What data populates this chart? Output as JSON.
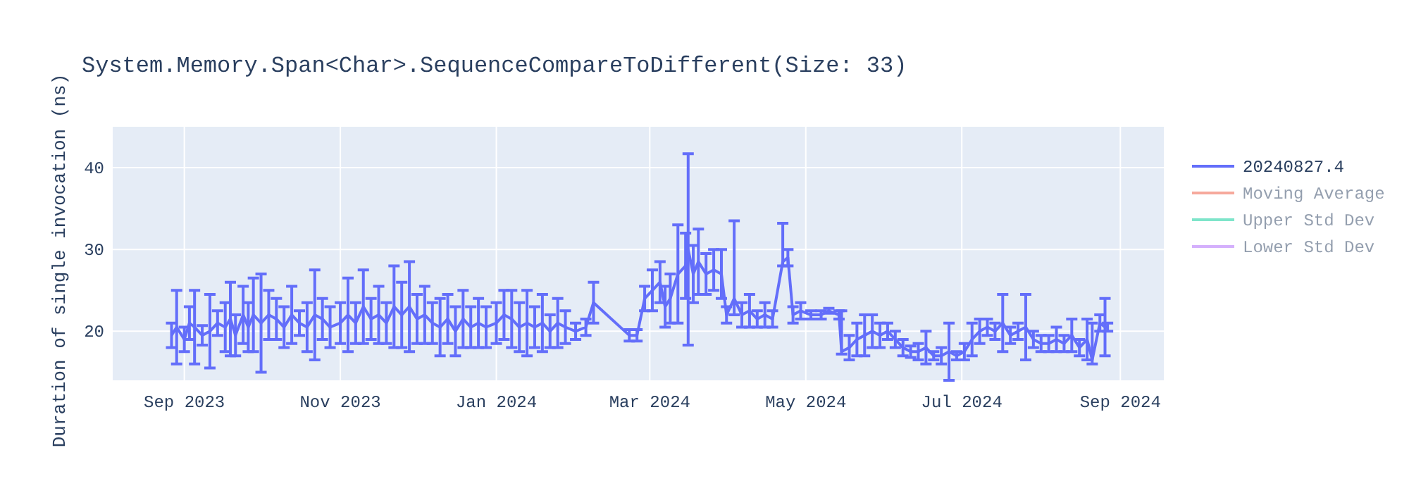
{
  "chart_data": {
    "type": "line",
    "title": "System.Memory.Span<Char>.SequenceCompareToDifferent(Size: 33)",
    "ylabel": "Duration of single invocation (ns)",
    "x": [
      "2023-08-27",
      "2023-08-29",
      "2023-09-01",
      "2023-09-03",
      "2023-09-05",
      "2023-09-08",
      "2023-09-11",
      "2023-09-14",
      "2023-09-17",
      "2023-09-19",
      "2023-09-21",
      "2023-09-24",
      "2023-09-26",
      "2023-09-28",
      "2023-10-01",
      "2023-10-04",
      "2023-10-07",
      "2023-10-10",
      "2023-10-13",
      "2023-10-16",
      "2023-10-19",
      "2023-10-22",
      "2023-10-25",
      "2023-10-28",
      "2023-11-01",
      "2023-11-04",
      "2023-11-07",
      "2023-11-10",
      "2023-11-13",
      "2023-11-16",
      "2023-11-19",
      "2023-11-22",
      "2023-11-25",
      "2023-11-28",
      "2023-12-01",
      "2023-12-04",
      "2023-12-07",
      "2023-12-10",
      "2023-12-13",
      "2023-12-16",
      "2023-12-19",
      "2023-12-22",
      "2023-12-25",
      "2023-12-28",
      "2024-01-01",
      "2024-01-04",
      "2024-01-07",
      "2024-01-10",
      "2024-01-13",
      "2024-01-16",
      "2024-01-19",
      "2024-01-22",
      "2024-01-25",
      "2024-01-28",
      "2024-02-01",
      "2024-02-05",
      "2024-02-08",
      "2024-02-22",
      "2024-02-25",
      "2024-02-28",
      "2024-03-02",
      "2024-03-05",
      "2024-03-07",
      "2024-03-09",
      "2024-03-12",
      "2024-03-15",
      "2024-03-16",
      "2024-03-18",
      "2024-03-20",
      "2024-03-23",
      "2024-03-26",
      "2024-03-29",
      "2024-03-31",
      "2024-04-03",
      "2024-04-06",
      "2024-04-09",
      "2024-04-12",
      "2024-04-15",
      "2024-04-18",
      "2024-04-22",
      "2024-04-24",
      "2024-04-26",
      "2024-04-29",
      "2024-05-03",
      "2024-05-07",
      "2024-05-10",
      "2024-05-14",
      "2024-05-15",
      "2024-05-18",
      "2024-05-21",
      "2024-05-24",
      "2024-05-27",
      "2024-05-30",
      "2024-06-02",
      "2024-06-05",
      "2024-06-08",
      "2024-06-11",
      "2024-06-14",
      "2024-06-17",
      "2024-06-20",
      "2024-06-23",
      "2024-06-26",
      "2024-06-29",
      "2024-07-02",
      "2024-07-05",
      "2024-07-08",
      "2024-07-11",
      "2024-07-14",
      "2024-07-17",
      "2024-07-20",
      "2024-07-23",
      "2024-07-26",
      "2024-07-29",
      "2024-08-01",
      "2024-08-04",
      "2024-08-07",
      "2024-08-10",
      "2024-08-13",
      "2024-08-16",
      "2024-08-19",
      "2024-08-21",
      "2024-08-24",
      "2024-08-26",
      "2024-08-27"
    ],
    "series": [
      {
        "name": "20240827.4",
        "color": "#636efa",
        "values": [
          19.5,
          20.5,
          19,
          21,
          20.5,
          19.5,
          20,
          21,
          20.5,
          21.5,
          19.5,
          22,
          20.5,
          22,
          21,
          22,
          21.5,
          20.5,
          22,
          21,
          20.5,
          22,
          21.5,
          20.5,
          21,
          22,
          21,
          23,
          21.5,
          22,
          21,
          23,
          22,
          23,
          21.5,
          22,
          21,
          20.5,
          21.5,
          20,
          21.5,
          20.5,
          21,
          20.5,
          21,
          22,
          21.5,
          20.5,
          21,
          20.5,
          21,
          20,
          21,
          20.5,
          20,
          20.5,
          23.5,
          19.5,
          19.5,
          24,
          25,
          26,
          23,
          24,
          27,
          28,
          30,
          27,
          28.5,
          27,
          27.5,
          27,
          22,
          24,
          22,
          22.5,
          21.5,
          22,
          21.5,
          28.5,
          29,
          22,
          22.5,
          22,
          22,
          22.5,
          22,
          17.5,
          18,
          19,
          19.5,
          20,
          19.5,
          20,
          19,
          18,
          17.5,
          17.5,
          18,
          17,
          17,
          17.5,
          17,
          17.5,
          19,
          20,
          20.5,
          20,
          21,
          19.5,
          20,
          20.5,
          19,
          18.5,
          18.5,
          19,
          18.5,
          19.5,
          18,
          19,
          16.5,
          21,
          20.5,
          20.5
        ],
        "errors": [
          1.5,
          4.5,
          1.5,
          2,
          4.5,
          1.2,
          4.5,
          1.5,
          3,
          4.5,
          2.5,
          3.5,
          3,
          4.5,
          6,
          3,
          2.5,
          2.5,
          3.5,
          1.5,
          3,
          5.5,
          2.5,
          2.5,
          2.5,
          4.5,
          2.5,
          4.5,
          2.5,
          3.5,
          2.5,
          5,
          4,
          5.5,
          3,
          3.5,
          2.5,
          3.5,
          3,
          3,
          3.5,
          2.5,
          3,
          2.5,
          2.5,
          3,
          3.5,
          3,
          4,
          2.5,
          3.5,
          2,
          3,
          2,
          1,
          1,
          2.5,
          0.7,
          0.7,
          1.5,
          2.5,
          2.5,
          2.5,
          3,
          6,
          4,
          11.7,
          3.5,
          4,
          2.5,
          2.5,
          3,
          1,
          [
            22,
            33.5
          ],
          1.5,
          2,
          1,
          1.5,
          1,
          [
            28,
            33.2
          ],
          1,
          1,
          1,
          0.5,
          0.5,
          0.3,
          0.5,
          [
            17.2,
            22.5
          ],
          1.5,
          2,
          2.5,
          2,
          1.5,
          1,
          1,
          1,
          0.7,
          1,
          2,
          0.5,
          1,
          3.5,
          0.5,
          1,
          2,
          1.5,
          1,
          1,
          3.5,
          1,
          1,
          4,
          1,
          1,
          1,
          1.5,
          1,
          2,
          1,
          2.5,
          [
            16,
            21
          ],
          1,
          3.5,
          0.5
        ]
      },
      {
        "name": "Moving Average",
        "color": "#ef553b",
        "values": [
          null,
          null,
          null,
          null,
          null,
          null,
          null,
          null,
          null,
          null,
          null,
          null,
          null,
          null,
          null,
          null,
          null,
          null,
          null,
          null,
          null,
          null,
          null,
          null,
          null,
          null,
          null,
          null,
          null,
          null,
          null,
          null,
          null,
          null,
          null,
          null,
          null,
          null,
          null,
          null,
          null,
          null,
          null,
          null,
          null,
          null,
          null,
          null,
          null,
          null,
          null,
          null,
          null,
          null,
          null,
          null,
          null,
          null,
          null,
          null,
          null,
          null,
          null,
          null,
          null,
          null,
          null,
          null,
          null,
          null,
          null,
          null,
          null,
          null,
          null,
          null,
          null,
          null,
          null,
          null,
          null,
          null,
          null,
          null,
          null,
          null,
          null,
          null,
          null,
          null,
          null,
          null,
          null,
          null,
          null,
          null,
          null,
          null,
          null,
          null,
          null,
          null,
          null,
          null,
          null,
          null,
          null,
          null,
          null,
          null,
          null,
          null,
          null,
          null,
          null,
          null,
          null,
          null,
          null,
          null,
          null,
          null,
          null,
          null
        ]
      },
      {
        "name": "Upper Std Dev",
        "color": "#00cc96",
        "values": [
          null,
          null,
          null,
          null,
          null,
          null,
          null,
          null,
          null,
          null,
          null,
          null,
          null,
          null,
          null,
          null,
          null,
          null,
          null,
          null,
          null,
          null,
          null,
          null,
          null,
          null,
          null,
          null,
          null,
          null,
          null,
          null,
          null,
          null,
          null,
          null,
          null,
          null,
          null,
          null,
          null,
          null,
          null,
          null,
          null,
          null,
          null,
          null,
          null,
          null,
          null,
          null,
          null,
          null,
          null,
          null,
          null,
          null,
          null,
          null,
          null,
          null,
          null,
          null,
          null,
          null,
          null,
          null,
          null,
          null,
          null,
          null,
          null,
          null,
          null,
          null,
          null,
          null,
          null,
          null,
          null,
          null,
          null,
          null,
          null,
          null,
          null,
          null,
          null,
          null,
          null,
          null,
          null,
          null,
          null,
          null,
          null,
          null,
          null,
          null,
          null,
          null,
          null,
          null,
          null,
          null,
          null,
          null,
          null,
          null,
          null,
          null,
          null,
          null,
          null,
          null,
          null,
          null,
          null,
          null,
          null,
          null,
          null,
          null
        ]
      },
      {
        "name": "Lower Std Dev",
        "color": "#ab63fa",
        "values": [
          null,
          null,
          null,
          null,
          null,
          null,
          null,
          null,
          null,
          null,
          null,
          null,
          null,
          null,
          null,
          null,
          null,
          null,
          null,
          null,
          null,
          null,
          null,
          null,
          null,
          null,
          null,
          null,
          null,
          null,
          null,
          null,
          null,
          null,
          null,
          null,
          null,
          null,
          null,
          null,
          null,
          null,
          null,
          null,
          null,
          null,
          null,
          null,
          null,
          null,
          null,
          null,
          null,
          null,
          null,
          null,
          null,
          null,
          null,
          null,
          null,
          null,
          null,
          null,
          null,
          null,
          null,
          null,
          null,
          null,
          null,
          null,
          null,
          null,
          null,
          null,
          null,
          null,
          null,
          null,
          null,
          null,
          null,
          null,
          null,
          null,
          null,
          null,
          null,
          null,
          null,
          null,
          null,
          null,
          null,
          null,
          null,
          null,
          null,
          null,
          null,
          null,
          null,
          null,
          null,
          null,
          null,
          null,
          null,
          null,
          null,
          null,
          null,
          null,
          null,
          null,
          null,
          null,
          null,
          null,
          null,
          null,
          null,
          null
        ]
      }
    ],
    "xlim": [
      "2023-08-04",
      "2024-09-18"
    ],
    "xticks": [
      {
        "value": "2023-09-01",
        "label": "Sep 2023"
      },
      {
        "value": "2023-11-01",
        "label": "Nov 2023"
      },
      {
        "value": "2024-01-01",
        "label": "Jan 2024"
      },
      {
        "value": "2024-03-01",
        "label": "Mar 2024"
      },
      {
        "value": "2024-05-01",
        "label": "May 2024"
      },
      {
        "value": "2024-07-01",
        "label": "Jul 2024"
      },
      {
        "value": "2024-09-01",
        "label": "Sep 2024"
      }
    ],
    "ylim": [
      14,
      45
    ],
    "yticks": [
      20,
      30,
      40
    ],
    "grid": true,
    "legend": "right",
    "marker": "none",
    "line_style": "solid"
  }
}
